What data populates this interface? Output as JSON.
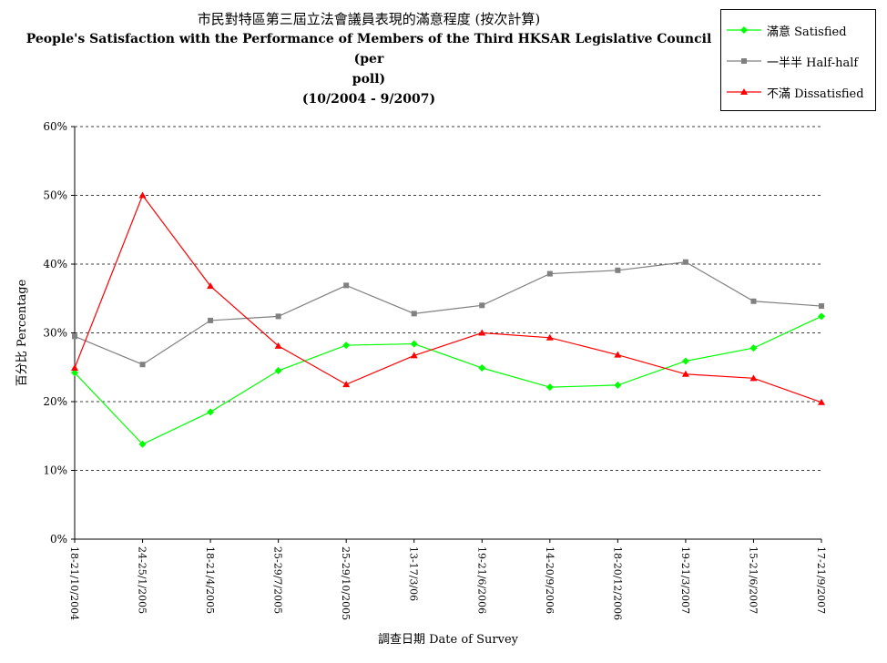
{
  "chart_data": {
    "type": "line",
    "title_zh": "市民對特區第三屆立法會議員表現的滿意程度 (按次計算)",
    "title_en_1": "People's Satisfaction with the Performance of Members of the Third HKSAR Legislative Council (per",
    "title_en_2": "poll)",
    "subtitle": "(10/2004 - 9/2007)",
    "xlabel": "調查日期 Date of Survey",
    "ylabel": "百分比 Percentage",
    "ylim": [
      0,
      60
    ],
    "yticks": [
      0,
      10,
      20,
      30,
      40,
      50,
      60
    ],
    "ytick_labels": [
      "0%",
      "10%",
      "20%",
      "30%",
      "40%",
      "50%",
      "60%"
    ],
    "grid": true,
    "legend_position": "top-right",
    "categories": [
      "18-21/10/2004",
      "24-25/1/2005",
      "18-21/4/2005",
      "25-29/7/2005",
      "25-29/10/2005",
      "13-17/3/06",
      "19-21/6/2006",
      "14-20/9/2006",
      "18-20/12/2006",
      "19-21/3/2007",
      "15-21/6/2007",
      "17-21/9/2007"
    ],
    "series": [
      {
        "name": "滿意 Satisfied",
        "color": "#00ff00",
        "marker": "diamond",
        "values": [
          24.2,
          13.8,
          18.5,
          24.5,
          28.2,
          28.4,
          24.9,
          22.1,
          22.4,
          25.9,
          27.8,
          32.4
        ]
      },
      {
        "name": "一半半 Half-half",
        "color": "#808080",
        "marker": "square",
        "values": [
          29.5,
          25.4,
          31.8,
          32.4,
          36.9,
          32.8,
          34.0,
          38.6,
          39.1,
          40.3,
          34.6,
          33.9
        ]
      },
      {
        "name": "不滿 Dissatisfied",
        "color": "#ff0000",
        "marker": "triangle",
        "values": [
          24.9,
          50.0,
          36.8,
          28.1,
          22.5,
          26.7,
          30.0,
          29.3,
          26.8,
          24.0,
          23.4,
          19.9
        ]
      }
    ]
  }
}
